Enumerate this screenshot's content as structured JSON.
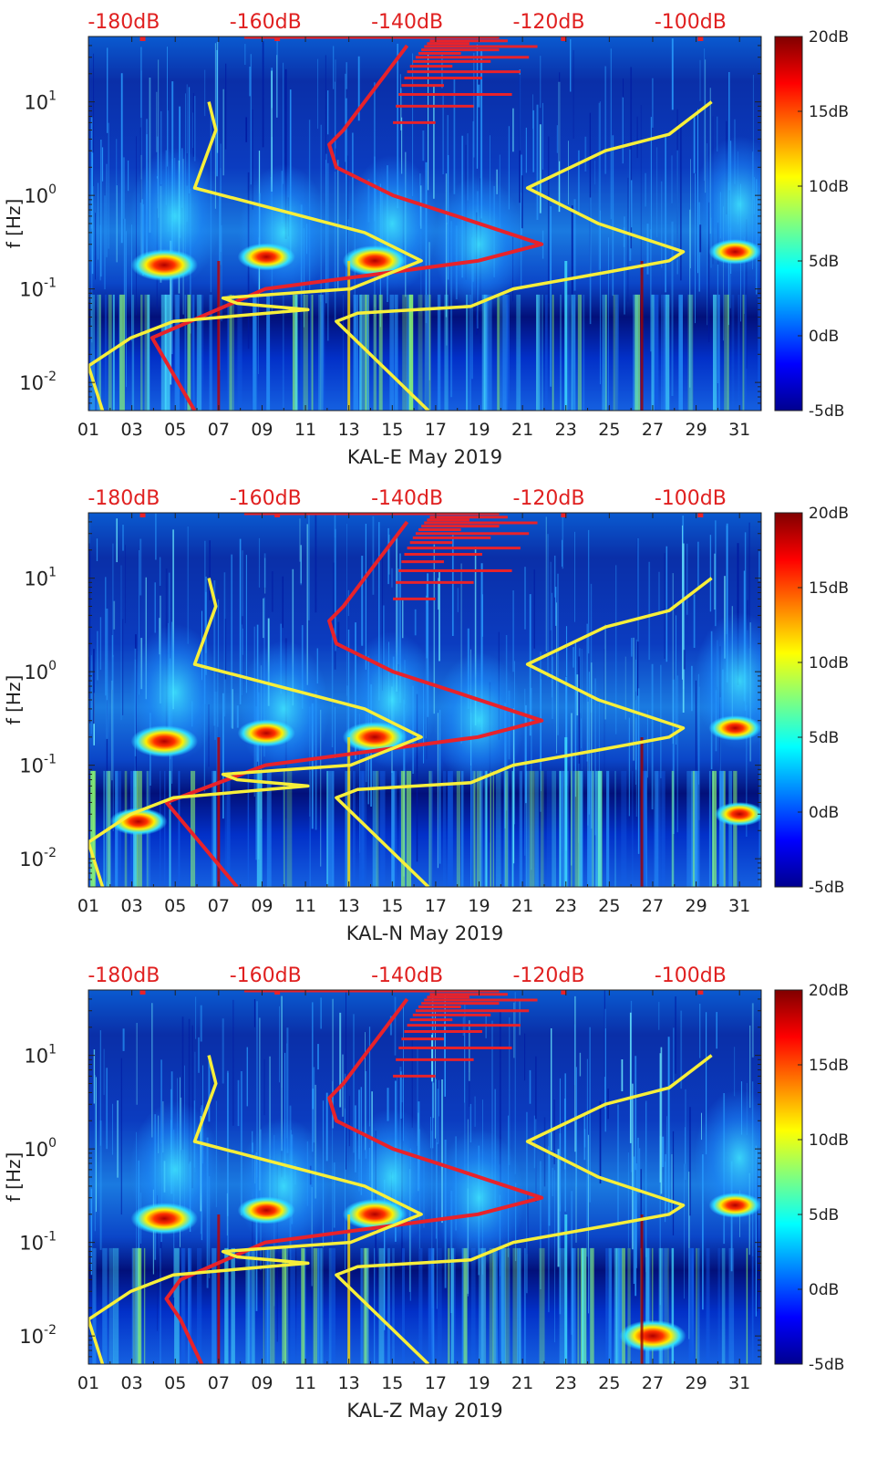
{
  "figure": {
    "background": "#ffffff",
    "top_axis_color": "#e02020",
    "noise_model_color": "#e8222a",
    "reference_color": "#f7ef3a"
  },
  "chart_data": [
    {
      "type": "heatmap",
      "xlabel": "KAL-E May 2019",
      "ylabel": "f [Hz]",
      "x_ticks": [
        "01",
        "03",
        "05",
        "07",
        "09",
        "11",
        "13",
        "15",
        "17",
        "19",
        "21",
        "23",
        "25",
        "27",
        "29",
        "31"
      ],
      "x_range": [
        1,
        32
      ],
      "y_scale": "log",
      "y_range": [
        0.005,
        50
      ],
      "y_ticks": [
        {
          "value": 0.01,
          "base": "10",
          "exp": "-2"
        },
        {
          "value": 0.1,
          "base": "10",
          "exp": "-1"
        },
        {
          "value": 1,
          "base": "10",
          "exp": "0"
        },
        {
          "value": 10,
          "base": "10",
          "exp": "1"
        }
      ],
      "top_ticks": [
        "-180dB",
        "-160dB",
        "-140dB",
        "-120dB",
        "-100dB"
      ],
      "top_range": [
        -185,
        -90
      ],
      "top_tick_values": [
        -180,
        -160,
        -140,
        -120,
        -100
      ],
      "colorbar": {
        "labels": [
          "20dB",
          "15dB",
          "10dB",
          "5dB",
          "0dB",
          "-5dB"
        ],
        "values": [
          20,
          15,
          10,
          5,
          0,
          -5
        ],
        "range": [
          -5,
          20
        ]
      },
      "highlights": [
        {
          "day": 4.5,
          "freq": 0.18,
          "level": 19
        },
        {
          "day": 9.2,
          "freq": 0.22,
          "level": 15
        },
        {
          "day": 14.2,
          "freq": 0.2,
          "level": 18
        },
        {
          "day": 30.8,
          "freq": 0.25,
          "level": 13
        }
      ],
      "lines": [
        {
          "id": "noise-model-red",
          "freq": [
            0.005,
            0.03,
            0.1,
            0.2,
            0.3,
            0.6,
            1.0,
            2.0,
            3.5,
            5,
            10,
            20,
            40
          ],
          "db": [
            -170,
            -176,
            -160,
            -130,
            -121,
            -133,
            -142,
            -150,
            -151,
            -149,
            -146,
            -143,
            -140
          ]
        },
        {
          "id": "reference-left",
          "freq": [
            0.005,
            0.015,
            0.03,
            0.045,
            0.06,
            0.07,
            0.08,
            0.1,
            0.2,
            0.4,
            1.2,
            5,
            10
          ],
          "db": [
            -183,
            -185,
            -179,
            -173,
            -154,
            -164,
            -166,
            -148,
            -138,
            -146,
            -170,
            -167,
            -168
          ]
        },
        {
          "id": "reference-right",
          "freq": [
            0.005,
            0.045,
            0.055,
            0.065,
            0.1,
            0.15,
            0.2,
            0.25,
            0.5,
            1.2,
            3,
            4.5,
            10
          ],
          "db": [
            -137,
            -150,
            -147,
            -131,
            -125,
            -112,
            -103,
            -101,
            -113,
            -123,
            -112,
            -103,
            -97
          ]
        }
      ]
    },
    {
      "type": "heatmap",
      "xlabel": "KAL-N May 2019",
      "ylabel": "f [Hz]",
      "x_ticks": [
        "01",
        "03",
        "05",
        "07",
        "09",
        "11",
        "13",
        "15",
        "17",
        "19",
        "21",
        "23",
        "25",
        "27",
        "29",
        "31"
      ],
      "x_range": [
        1,
        32
      ],
      "y_scale": "log",
      "y_range": [
        0.005,
        50
      ],
      "y_ticks": [
        {
          "value": 0.01,
          "base": "10",
          "exp": "-2"
        },
        {
          "value": 0.1,
          "base": "10",
          "exp": "-1"
        },
        {
          "value": 1,
          "base": "10",
          "exp": "0"
        },
        {
          "value": 10,
          "base": "10",
          "exp": "1"
        }
      ],
      "top_ticks": [
        "-180dB",
        "-160dB",
        "-140dB",
        "-120dB",
        "-100dB"
      ],
      "top_range": [
        -185,
        -90
      ],
      "top_tick_values": [
        -180,
        -160,
        -140,
        -120,
        -100
      ],
      "colorbar": {
        "labels": [
          "20dB",
          "15dB",
          "10dB",
          "5dB",
          "0dB",
          "-5dB"
        ],
        "values": [
          20,
          15,
          10,
          5,
          0,
          -5
        ],
        "range": [
          -5,
          20
        ]
      },
      "highlights": [
        {
          "day": 4.5,
          "freq": 0.18,
          "level": 19
        },
        {
          "day": 9.2,
          "freq": 0.22,
          "level": 15
        },
        {
          "day": 14.2,
          "freq": 0.2,
          "level": 18
        },
        {
          "day": 30.8,
          "freq": 0.25,
          "level": 13
        },
        {
          "day": 3.3,
          "freq": 0.025,
          "level": 15
        },
        {
          "day": 31.0,
          "freq": 0.03,
          "level": 12
        }
      ],
      "lines": [
        {
          "id": "noise-model-red",
          "freq": [
            0.005,
            0.04,
            0.1,
            0.2,
            0.3,
            0.6,
            1.0,
            2.0,
            3.5,
            5,
            10,
            20,
            40
          ],
          "db": [
            -164,
            -174,
            -160,
            -130,
            -121,
            -133,
            -142,
            -150,
            -151,
            -149,
            -146,
            -143,
            -140
          ]
        },
        {
          "id": "reference-left",
          "freq": [
            0.005,
            0.015,
            0.03,
            0.045,
            0.06,
            0.07,
            0.08,
            0.1,
            0.2,
            0.4,
            1.2,
            5,
            10
          ],
          "db": [
            -183,
            -185,
            -179,
            -173,
            -154,
            -164,
            -166,
            -148,
            -138,
            -146,
            -170,
            -167,
            -168
          ]
        },
        {
          "id": "reference-right",
          "freq": [
            0.005,
            0.045,
            0.055,
            0.065,
            0.1,
            0.15,
            0.2,
            0.25,
            0.5,
            1.2,
            3,
            4.5,
            10
          ],
          "db": [
            -137,
            -150,
            -147,
            -131,
            -125,
            -112,
            -103,
            -101,
            -113,
            -123,
            -112,
            -103,
            -97
          ]
        }
      ]
    },
    {
      "type": "heatmap",
      "xlabel": "KAL-Z May 2019",
      "ylabel": "f [Hz]",
      "x_ticks": [
        "01",
        "03",
        "05",
        "07",
        "09",
        "11",
        "13",
        "15",
        "17",
        "19",
        "21",
        "23",
        "25",
        "27",
        "29",
        "31"
      ],
      "x_range": [
        1,
        32
      ],
      "y_scale": "log",
      "y_range": [
        0.005,
        50
      ],
      "y_ticks": [
        {
          "value": 0.01,
          "base": "10",
          "exp": "-2"
        },
        {
          "value": 0.1,
          "base": "10",
          "exp": "-1"
        },
        {
          "value": 1,
          "base": "10",
          "exp": "0"
        },
        {
          "value": 10,
          "base": "10",
          "exp": "1"
        }
      ],
      "top_ticks": [
        "-180dB",
        "-160dB",
        "-140dB",
        "-120dB",
        "-100dB"
      ],
      "top_range": [
        -185,
        -90
      ],
      "top_tick_values": [
        -180,
        -160,
        -140,
        -120,
        -100
      ],
      "colorbar": {
        "labels": [
          "20dB",
          "15dB",
          "10dB",
          "5dB",
          "0dB",
          "-5dB"
        ],
        "values": [
          20,
          15,
          10,
          5,
          0,
          -5
        ],
        "range": [
          -5,
          20
        ]
      },
      "highlights": [
        {
          "day": 4.5,
          "freq": 0.18,
          "level": 19
        },
        {
          "day": 9.2,
          "freq": 0.22,
          "level": 15
        },
        {
          "day": 14.2,
          "freq": 0.2,
          "level": 18
        },
        {
          "day": 30.8,
          "freq": 0.25,
          "level": 13
        },
        {
          "day": 27.0,
          "freq": 0.01,
          "level": 19
        }
      ],
      "lines": [
        {
          "id": "noise-model-red",
          "freq": [
            0.005,
            0.015,
            0.025,
            0.04,
            0.1,
            0.2,
            0.3,
            0.6,
            1.0,
            2.0,
            3.5,
            5,
            10,
            20,
            40
          ],
          "db": [
            -169,
            -172,
            -174,
            -172,
            -160,
            -130,
            -121,
            -133,
            -142,
            -150,
            -151,
            -149,
            -146,
            -143,
            -140
          ]
        },
        {
          "id": "reference-left",
          "freq": [
            0.005,
            0.015,
            0.03,
            0.045,
            0.06,
            0.07,
            0.08,
            0.1,
            0.2,
            0.4,
            1.2,
            5,
            10
          ],
          "db": [
            -183,
            -185,
            -179,
            -173,
            -154,
            -164,
            -166,
            -148,
            -138,
            -146,
            -170,
            -167,
            -168
          ]
        },
        {
          "id": "reference-right",
          "freq": [
            0.005,
            0.045,
            0.055,
            0.065,
            0.1,
            0.15,
            0.2,
            0.25,
            0.5,
            1.2,
            3,
            4.5,
            10
          ],
          "db": [
            -137,
            -150,
            -147,
            -131,
            -125,
            -112,
            -103,
            -101,
            -113,
            -123,
            -112,
            -103,
            -97
          ]
        }
      ]
    }
  ]
}
